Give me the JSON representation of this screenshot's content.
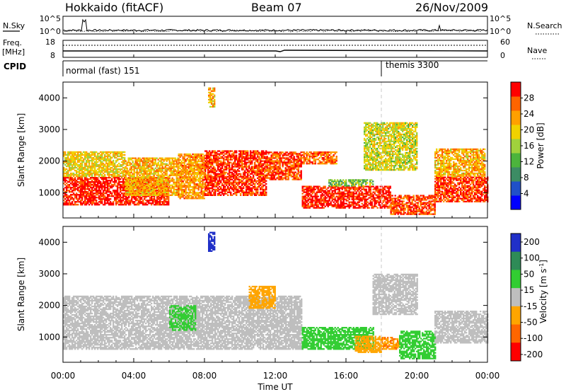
{
  "header": {
    "title": "Hokkaido (fitACF)",
    "beam": "Beam 07",
    "date": "26/Nov/2009"
  },
  "top_panels": {
    "nsky_label": "N.Sky",
    "nsearch_label": "N.Search",
    "nsky_ticks": [
      "10^5",
      "10^0"
    ],
    "freq_label_line1": "Freq.",
    "freq_label_line2": "[MHz]",
    "freq_ticks": [
      "18",
      "8"
    ],
    "nave_label": "Nave",
    "nave_ticks": [
      "60",
      "0"
    ],
    "cpid_label": "CPID",
    "cpid_segments": [
      {
        "text": "normal (fast) 151",
        "start_hour": 0
      },
      {
        "text": "themis 3300",
        "start_hour": 18.0
      }
    ]
  },
  "colors": {
    "power_scale": [
      "#0000ff",
      "#2050c8",
      "#3c8c64",
      "#4cb43c",
      "#a0d23c",
      "#f0d200",
      "#ffa000",
      "#ff6400",
      "#ff0000"
    ],
    "velocity_scale": [
      "#2030c8",
      "#2e8b57",
      "#32cd32",
      "#b4b4b4",
      "#ffa500",
      "#ff6600",
      "#ff0000"
    ],
    "ground_scatter": "#bebebe"
  },
  "chart_data": [
    {
      "type": "heatmap",
      "name": "power",
      "ylabel": "Slant Range [km]",
      "xlabel": "Time UT",
      "x_range_hours": [
        0,
        24
      ],
      "ylim": [
        200,
        4500
      ],
      "y_ticks": [
        1000,
        2000,
        3000,
        4000
      ],
      "colorbar": {
        "label": "Power [dB]",
        "ticks": [
          4,
          8,
          12,
          16,
          20,
          24,
          28
        ],
        "range": [
          0,
          32
        ]
      },
      "regions": [
        {
          "t0": 0.0,
          "t1": 6.0,
          "r0": 600,
          "r1": 1500,
          "value": 30
        },
        {
          "t0": 0.0,
          "t1": 3.5,
          "r0": 1500,
          "r1": 2300,
          "value": 20
        },
        {
          "t0": 3.5,
          "t1": 6.5,
          "r0": 900,
          "r1": 2100,
          "value": 22
        },
        {
          "t0": 6.5,
          "t1": 8.0,
          "r0": 800,
          "r1": 2200,
          "value": 24
        },
        {
          "t0": 8.0,
          "t1": 11.5,
          "r0": 900,
          "r1": 2300,
          "value": 29
        },
        {
          "t0": 8.2,
          "t1": 8.6,
          "r0": 3700,
          "r1": 4300,
          "value": 22
        },
        {
          "t0": 11.5,
          "t1": 13.5,
          "r0": 1400,
          "r1": 2300,
          "value": 28
        },
        {
          "t0": 13.5,
          "t1": 15.5,
          "r0": 1900,
          "r1": 2300,
          "value": 26
        },
        {
          "t0": 13.5,
          "t1": 18.5,
          "r0": 500,
          "r1": 1200,
          "value": 30
        },
        {
          "t0": 15.0,
          "t1": 17.5,
          "r0": 1200,
          "r1": 1400,
          "value": 14
        },
        {
          "t0": 17.0,
          "t1": 20.0,
          "r0": 1700,
          "r1": 3200,
          "value": 18
        },
        {
          "t0": 18.5,
          "t1": 21.0,
          "r0": 300,
          "r1": 900,
          "value": 28
        },
        {
          "t0": 21.0,
          "t1": 24.0,
          "r0": 700,
          "r1": 1500,
          "value": 29
        },
        {
          "t0": 21.0,
          "t1": 23.8,
          "r0": 1500,
          "r1": 2400,
          "value": 22
        }
      ]
    },
    {
      "type": "heatmap",
      "name": "velocity",
      "ylabel": "Slant Range [km]",
      "xlabel": "Time UT",
      "x_range_hours": [
        0,
        24
      ],
      "ylim": [
        200,
        4500
      ],
      "y_ticks": [
        1000,
        2000,
        3000,
        4000
      ],
      "colorbar": {
        "label": "Velocity [m s",
        "label_sup": "-1",
        "ticks": [
          "200",
          "100",
          "50",
          "15",
          "-15",
          "-50",
          "-100",
          "-200"
        ],
        "range": [
          -250,
          250
        ]
      },
      "regions": [
        {
          "t0": 0.0,
          "t1": 13.5,
          "r0": 600,
          "r1": 2300,
          "value": 0
        },
        {
          "t0": 6.0,
          "t1": 7.5,
          "r0": 1200,
          "r1": 2000,
          "value": 30
        },
        {
          "t0": 8.2,
          "t1": 8.6,
          "r0": 3700,
          "r1": 4300,
          "value": 180
        },
        {
          "t0": 10.5,
          "t1": 12.0,
          "r0": 1900,
          "r1": 2600,
          "value": -60
        },
        {
          "t0": 13.5,
          "t1": 17.5,
          "r0": 600,
          "r1": 1300,
          "value": 40
        },
        {
          "t0": 16.5,
          "t1": 18.0,
          "r0": 500,
          "r1": 1000,
          "value": -40
        },
        {
          "t0": 18.0,
          "t1": 19.0,
          "r0": 600,
          "r1": 1000,
          "value": -70
        },
        {
          "t0": 17.5,
          "t1": 20.0,
          "r0": 1700,
          "r1": 3000,
          "value": 0
        },
        {
          "t0": 19.0,
          "t1": 21.0,
          "r0": 300,
          "r1": 1200,
          "value": 40
        },
        {
          "t0": 21.0,
          "t1": 24.0,
          "r0": 800,
          "r1": 1800,
          "value": 0
        }
      ]
    }
  ],
  "x_axis": {
    "ticks": [
      "00:00",
      "04:00",
      "08:00",
      "12:00",
      "16:00",
      "20:00",
      "00:00"
    ],
    "tick_hours": [
      0,
      4,
      8,
      12,
      16,
      20,
      24
    ],
    "label": "Time UT"
  }
}
